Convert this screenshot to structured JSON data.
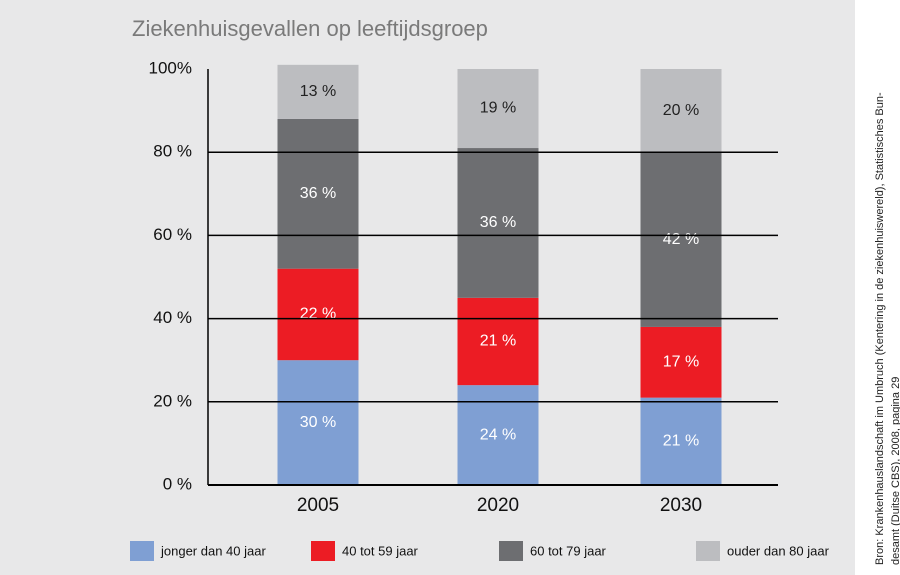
{
  "chart_data": {
    "type": "stacked_bar",
    "title": "Ziekenhuisgevallen op leeftijdsgroep",
    "categories": [
      "2005",
      "2020",
      "2030"
    ],
    "series": [
      {
        "name": "jonger dan 40 jaar",
        "color": "#7f9fd3",
        "values": [
          30,
          24,
          21
        ],
        "value_labels": [
          "30 %",
          "24 %",
          "21 %"
        ]
      },
      {
        "name": "40 tot 59 jaar",
        "color": "#ec1c24",
        "values": [
          22,
          21,
          17
        ],
        "value_labels": [
          "22 %",
          "21 %",
          "17 %"
        ]
      },
      {
        "name": "60 tot 79 jaar",
        "color": "#6d6e71",
        "values": [
          36,
          36,
          42
        ],
        "value_labels": [
          "36 %",
          "36 %",
          "42 %"
        ]
      },
      {
        "name": "ouder dan 80 jaar",
        "color": "#bcbdc0",
        "values": [
          13,
          19,
          20
        ],
        "value_labels": [
          "13 %",
          "19 %",
          "20 %"
        ]
      }
    ],
    "ylim": [
      0,
      100
    ],
    "yticks": [
      {
        "value": 0,
        "label": "0 %"
      },
      {
        "value": 20,
        "label": "20 %"
      },
      {
        "value": 40,
        "label": "40 %"
      },
      {
        "value": 60,
        "label": "60 %"
      },
      {
        "value": 80,
        "label": "80 %"
      },
      {
        "value": 100,
        "label": "100%"
      }
    ],
    "grid": true,
    "source": [
      "Bron: Krankenhauslandschaft im Umbruch (Kentering in de ziekenhuiswereld), Statistisches Bun-",
      "desamt (Duitse CBS), 2008, pagina 29"
    ]
  }
}
